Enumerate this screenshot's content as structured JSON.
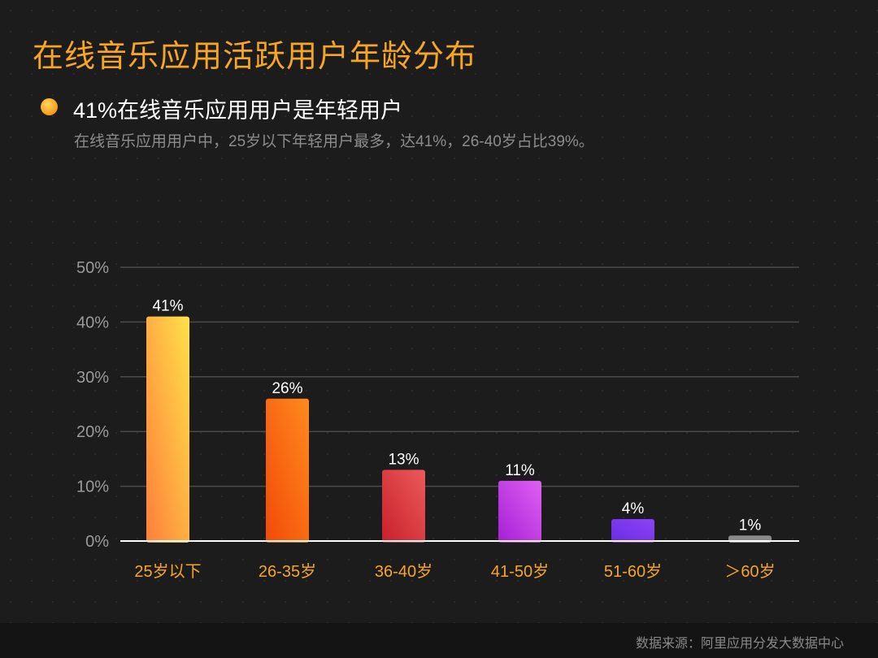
{
  "page": {
    "title": "在线音乐应用活跃用户年龄分布",
    "headline": "41%在线音乐应用用户是年轻用户",
    "subline": "在线音乐应用用户中，25岁以下年轻用户最多，达41%，26-40岁占比39%。",
    "source": "数据来源：阿里应用分发大数据中心"
  },
  "colors": {
    "title": "#f7a623",
    "category_label": "#f7a623",
    "axis_label": "#9a9a9a",
    "value_label": "#ffffff",
    "gridline": "#4a4a4a",
    "baseline": "#ffffff",
    "bars": [
      [
        "#ffe14a",
        "#ff7e3a"
      ],
      [
        "#ff8a1f",
        "#f24a07"
      ],
      [
        "#ec5a5a",
        "#c8202b"
      ],
      [
        "#e060f2",
        "#a51fd6"
      ],
      [
        "#8d43f7",
        "#6a2ce0"
      ],
      [
        "#8a8a8a",
        "#8a8a8a"
      ]
    ]
  },
  "chart_data": {
    "type": "bar",
    "title": "在线音乐应用活跃用户年龄分布",
    "xlabel": "",
    "ylabel": "",
    "categories": [
      "25岁以下",
      "26-35岁",
      "36-40岁",
      "41-50岁",
      "51-60岁",
      "＞60岁"
    ],
    "values": [
      41,
      26,
      13,
      11,
      4,
      1
    ],
    "value_labels": [
      "41%",
      "26%",
      "13%",
      "11%",
      "4%",
      "1%"
    ],
    "ylim": [
      0,
      50
    ],
    "yticks": [
      0,
      10,
      20,
      30,
      40,
      50
    ],
    "ytick_labels": [
      "0%",
      "10%",
      "20%",
      "30%",
      "40%",
      "50%"
    ],
    "grid": true,
    "legend": "none"
  }
}
